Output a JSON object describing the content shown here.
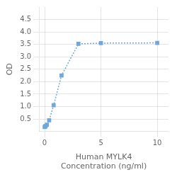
{
  "chart_data": {
    "type": "line",
    "x": [
      0,
      0.05,
      0.1,
      0.2,
      0.4,
      0.8,
      1.5,
      3,
      5,
      10
    ],
    "series": [
      {
        "name": "OD",
        "color": "#6FA8DC",
        "marker": "square",
        "line_style": "dotted",
        "values": [
          0.18,
          0.2,
          0.22,
          0.27,
          0.45,
          1.05,
          2.25,
          3.52,
          3.55,
          3.56
        ]
      }
    ],
    "xlabel": "Human MYLK4\nConcentration (ng/ml)",
    "ylabel": "OD",
    "xlim": [
      -0.5,
      11
    ],
    "xticks": [
      0,
      5,
      10
    ],
    "ylim": [
      0,
      5.0
    ],
    "yticks": [
      0.5,
      {
        "value": 1.0,
        "label": "1.0"
      },
      1.5,
      {
        "value": 2.0,
        "label": "2.0"
      },
      2.5,
      {
        "value": 3.0,
        "label": "3.0"
      },
      3.5,
      {
        "value": 4.0,
        "label": "4.0"
      },
      4.5
    ],
    "grid": true
  }
}
